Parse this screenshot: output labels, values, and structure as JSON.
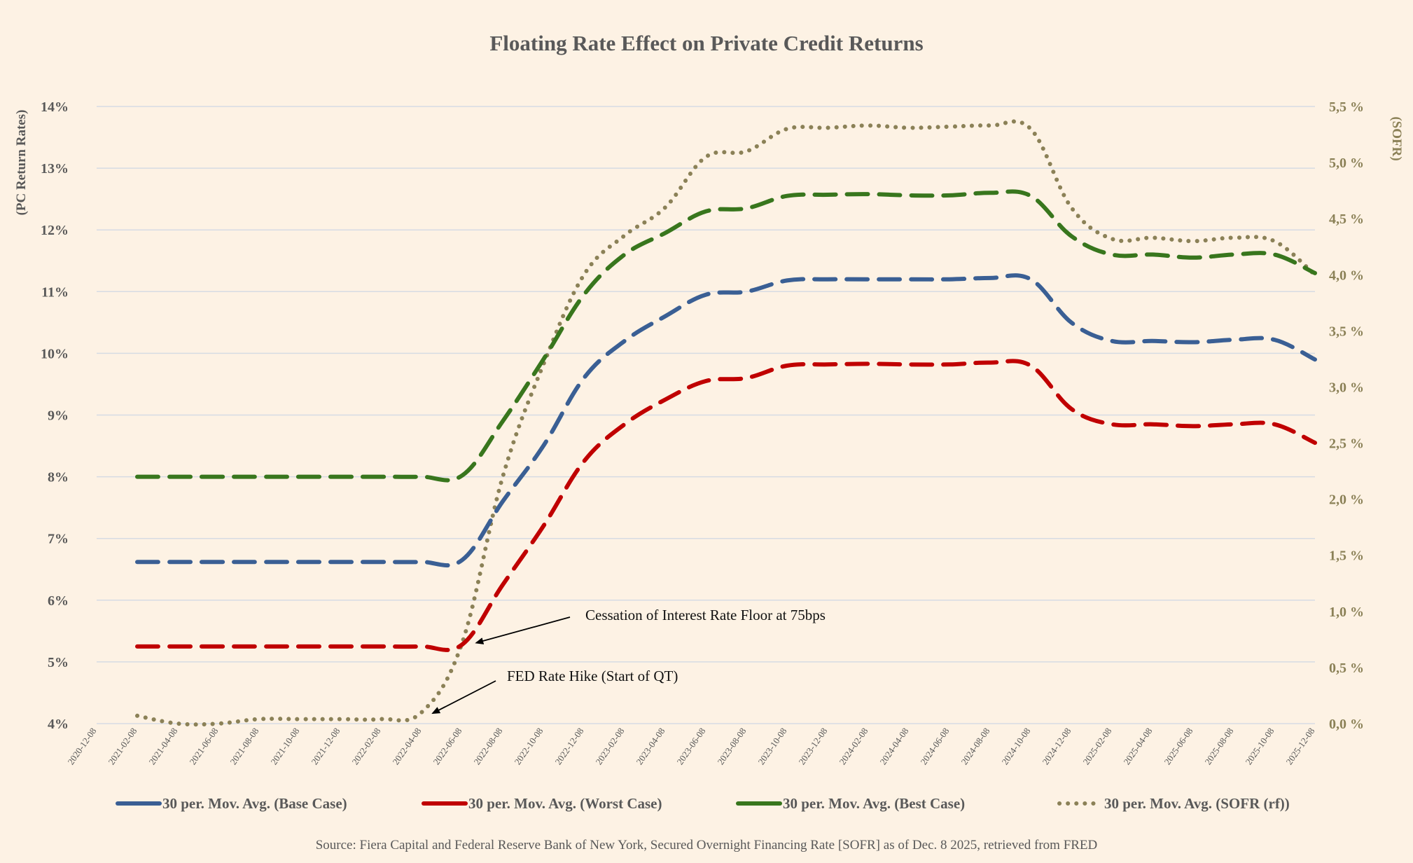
{
  "chart_data": {
    "type": "line",
    "title": "Floating Rate Effect on Private Credit Returns",
    "ylabel": "(PC Return Rates)",
    "y2label": "(SOFR)",
    "ylim": [
      4,
      14
    ],
    "y2lim": [
      0,
      5.5
    ],
    "yticks": [
      "4%",
      "5%",
      "6%",
      "7%",
      "8%",
      "9%",
      "10%",
      "11%",
      "12%",
      "13%",
      "14%"
    ],
    "y2ticks": [
      "0,0 %",
      "0,5 %",
      "1,0 %",
      "1,5 %",
      "2,0 %",
      "2,5 %",
      "3,0 %",
      "3,5 %",
      "4,0 %",
      "4,5 %",
      "5,0 %",
      "5,5 %"
    ],
    "x": [
      "2020-12-08",
      "2021-02-08",
      "2021-04-08",
      "2021-06-08",
      "2021-08-08",
      "2021-10-08",
      "2021-12-08",
      "2022-02-08",
      "2022-04-08",
      "2022-06-08",
      "2022-08-08",
      "2022-10-08",
      "2022-12-08",
      "2023-02-08",
      "2023-04-08",
      "2023-06-08",
      "2023-08-08",
      "2023-10-08",
      "2023-12-08",
      "2024-02-08",
      "2024-04-08",
      "2024-06-08",
      "2024-08-08",
      "2024-10-08",
      "2024-12-08",
      "2025-02-08",
      "2025-04-08",
      "2025-06-08",
      "2025-08-08",
      "2025-10-08",
      "2025-12-08"
    ],
    "series": [
      {
        "name": "30 per. Mov. Avg. (Base Case)",
        "axis": "left",
        "color": "#3a5f94",
        "style": "dashed",
        "values": [
          null,
          6.62,
          6.62,
          6.62,
          6.62,
          6.62,
          6.62,
          6.62,
          6.62,
          6.65,
          7.6,
          8.5,
          9.6,
          10.2,
          10.6,
          10.95,
          11.0,
          11.18,
          11.2,
          11.2,
          11.2,
          11.2,
          11.22,
          11.2,
          10.5,
          10.2,
          10.2,
          10.18,
          10.22,
          10.22,
          9.9
        ]
      },
      {
        "name": "30 per. Mov. Avg. (Worst Case)",
        "axis": "left",
        "color": "#c00000",
        "style": "dashed",
        "values": [
          null,
          5.25,
          5.25,
          5.25,
          5.25,
          5.25,
          5.25,
          5.25,
          5.25,
          5.28,
          6.25,
          7.2,
          8.25,
          8.85,
          9.25,
          9.55,
          9.6,
          9.8,
          9.82,
          9.83,
          9.82,
          9.82,
          9.85,
          9.8,
          9.1,
          8.85,
          8.85,
          8.82,
          8.85,
          8.85,
          8.55
        ]
      },
      {
        "name": "30 per. Mov. Avg. (Best Case)",
        "axis": "left",
        "color": "#38761d",
        "style": "dashed",
        "values": [
          null,
          8.0,
          8.0,
          8.0,
          8.0,
          8.0,
          8.0,
          8.0,
          8.0,
          8.02,
          8.9,
          9.9,
          10.95,
          11.6,
          11.95,
          12.3,
          12.35,
          12.55,
          12.57,
          12.58,
          12.56,
          12.56,
          12.6,
          12.55,
          11.9,
          11.6,
          11.6,
          11.55,
          11.6,
          11.6,
          11.3
        ]
      },
      {
        "name": "30 per. Mov. Avg. (SOFR (rf))",
        "axis": "right",
        "color": "#8b8157",
        "style": "dotted",
        "values": [
          null,
          0.07,
          0.0,
          0.0,
          0.04,
          0.04,
          0.04,
          0.04,
          0.1,
          0.72,
          2.2,
          3.2,
          4.0,
          4.35,
          4.6,
          5.05,
          5.1,
          5.3,
          5.31,
          5.33,
          5.31,
          5.32,
          5.33,
          5.3,
          4.6,
          4.32,
          4.33,
          4.3,
          4.33,
          4.3,
          4.0
        ]
      }
    ],
    "annotations": [
      {
        "text": "Cessation of Interest Rate Floor at 75bps",
        "x": "2022-06-25",
        "y2": 0.72
      },
      {
        "text": "FED Rate Hike (Start of QT)",
        "x": "2022-04-08",
        "y2": 0.08
      }
    ],
    "source": "Source: Fiera Capital and Federal Reserve Bank of New York, Secured Overnight Financing Rate [SOFR] as of Dec. 8 2025, retrieved from FRED",
    "gridlines": true,
    "legend_position": "bottom"
  }
}
